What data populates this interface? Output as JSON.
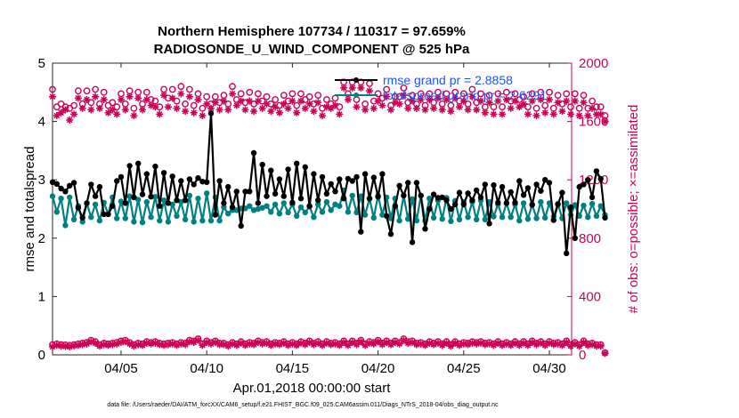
{
  "chart_data": {
    "type": "line",
    "title": [
      "Northern Hemisphere 107734 / 110317 = 97.659%",
      "RADIOSONDE_U_WIND_COMPONENT @ 525 hPa"
    ],
    "xlabel": "Apr.01,2018 00:00:00 start",
    "ylabel_left": "rmse and totalspread",
    "ylabel_right": "# of obs: o=possible; ×=assimilated",
    "xlim": [
      1,
      31.3
    ],
    "ylim_left": [
      0,
      5
    ],
    "ylim_right": [
      0,
      2000
    ],
    "x_ticks": [
      5,
      10,
      15,
      20,
      25,
      30
    ],
    "x_tick_labels": [
      "04/05",
      "04/10",
      "04/15",
      "04/20",
      "04/25",
      "04/30"
    ],
    "y_ticks_left": [
      0,
      1,
      2,
      3,
      4,
      5
    ],
    "y_ticks_right": [
      0,
      400,
      800,
      1200,
      1600,
      2000
    ],
    "x_start": 1.0,
    "x_step": 0.25,
    "series": [
      {
        "name": "rmse",
        "legend": "rmse grand pr = 2.8858",
        "axis": "left",
        "color": "#000000",
        "values": [
          2.96,
          2.93,
          2.85,
          2.8,
          2.9,
          2.95,
          2.72,
          2.92,
          2.6,
          2.92,
          2.72,
          2.88,
          2.41,
          2.9,
          2.55,
          2.98,
          3.05,
          2.6,
          3.24,
          2.7,
          3.28,
          2.75,
          3.1,
          2.71,
          3.23,
          2.55,
          3.12,
          2.6,
          3.06,
          2.65,
          2.98,
          2.65,
          3.01,
          2.92,
          3.03,
          2.97,
          2.96,
          4.14,
          2.4,
          2.98,
          2.6,
          2.88,
          2.53,
          2.8,
          2.6,
          2.8,
          2.8,
          3.46,
          2.6,
          3.26,
          2.72,
          3.16,
          2.76,
          3.01,
          2.72,
          3.18,
          2.61,
          3.28,
          2.68,
          3.22,
          2.55,
          3.1,
          2.65,
          3.05,
          2.76,
          2.93,
          2.8,
          3.01,
          2.68,
          3.02,
          2.98,
          3.05,
          2.65,
          3.1,
          2.68,
          3.04,
          2.71,
          3.1,
          2.38,
          3.1,
          2.55,
          2.9,
          2.73,
          2.95,
          2.48,
          2.95,
          2.73,
          2.8,
          2.5,
          2.75,
          2.69,
          2.7,
          2.65,
          2.5,
          2.58,
          2.78,
          2.58,
          2.77,
          2.65,
          2.82,
          2.7,
          2.92,
          2.48,
          2.91,
          2.61,
          2.88,
          2.6,
          2.79,
          2.61,
          2.98,
          2.74,
          2.86,
          2.57,
          2.92,
          2.81,
          3.0,
          2.95,
          2.8,
          2.58,
          2.78,
          2.58,
          2.53,
          2.82,
          2.88,
          2.92,
          3.0,
          3.06,
          3.15,
          3.02,
          2.35
        ],
        "overrides": {
          "6": 2.52,
          "7": 2.35,
          "13": 2.41,
          "44": 2.21,
          "72": 2.11,
          "79": 2.07,
          "84": 1.93,
          "87": 2.16,
          "102": 2.25,
          "117": 2.31,
          "120": 1.74,
          "122": 2.0,
          "126": 2.7
        },
        "low_points": {
          "6": 1.95,
          "72": 1.91,
          "120": 1.73
        }
      },
      {
        "name": "totalspread",
        "legend": "totalspread grand pr = 2.6291",
        "axis": "left",
        "color": "#008080",
        "values": [
          2.72,
          2.45,
          2.68,
          2.22,
          2.7,
          2.32,
          2.55,
          2.28,
          2.6,
          2.36,
          2.58,
          2.3,
          2.61,
          2.41,
          2.7,
          2.34,
          2.63,
          2.34,
          2.72,
          2.28,
          2.66,
          2.27,
          2.62,
          2.36,
          2.71,
          2.3,
          2.65,
          2.28,
          2.58,
          2.38,
          2.62,
          2.32,
          2.73,
          2.28,
          2.68,
          2.3,
          2.77,
          2.3,
          2.7,
          2.3,
          2.53,
          2.42,
          2.48,
          2.48,
          2.51,
          2.51,
          2.55,
          2.48,
          2.5,
          2.52,
          2.55,
          2.45,
          2.58,
          2.42,
          2.6,
          2.44,
          2.58,
          2.38,
          2.53,
          2.44,
          2.54,
          2.36,
          2.58,
          2.45,
          2.62,
          2.48,
          2.58,
          2.55,
          2.82,
          2.45,
          2.73,
          2.44,
          2.72,
          2.4,
          2.68,
          2.35,
          2.73,
          2.4,
          2.7,
          2.34,
          2.68,
          2.3,
          2.73,
          2.33,
          2.67,
          2.3,
          2.73,
          2.3,
          2.68,
          2.35,
          2.65,
          2.33,
          2.69,
          2.29,
          2.64,
          2.32,
          2.62,
          2.36,
          2.62,
          2.32,
          2.65,
          2.32,
          2.62,
          2.37,
          2.58,
          2.36,
          2.6,
          2.36,
          2.58,
          2.3,
          2.6,
          2.33,
          2.58,
          2.34,
          2.62,
          2.35,
          2.6,
          2.37,
          2.59,
          2.34,
          2.6,
          2.4,
          2.57,
          2.38,
          2.56,
          2.36,
          2.59,
          2.38,
          2.55,
          2.4
        ]
      },
      {
        "name": "possible",
        "axis": "right",
        "color": "#cc0055",
        "marker": "o",
        "values": [
          1820,
          1700,
          1720,
          1700,
          1690,
          1710,
          1810,
          1720,
          1810,
          1730,
          1820,
          1720,
          1800,
          1710,
          1730,
          1700,
          1790,
          1720,
          1810,
          1690,
          1800,
          1720,
          1800,
          1750,
          1740,
          1700,
          1820,
          1760,
          1820,
          1740,
          1840,
          1720,
          1820,
          1710,
          1790,
          1690,
          1770,
          1720,
          1770,
          1730,
          1780,
          1720,
          1840,
          1750,
          1790,
          1730,
          1800,
          1720,
          1790,
          1740,
          1770,
          1720,
          1750,
          1710,
          1780,
          1740,
          1790,
          1710,
          1790,
          1750,
          1770,
          1720,
          1780,
          1690,
          1750,
          1720,
          1760,
          1700,
          1870,
          1790,
          1870,
          1750,
          1870,
          1720,
          1860,
          1740,
          1790,
          1760,
          1820,
          1710,
          1770,
          1770,
          1830,
          1730,
          1780,
          1720,
          1790,
          1710,
          1790,
          1730,
          1800,
          1720,
          1790,
          1710,
          1800,
          1740,
          1790,
          1720,
          1820,
          1730,
          1790,
          1700,
          1780,
          1700,
          1790,
          1700,
          1800,
          1740,
          1790,
          1750,
          1770,
          1700,
          1790,
          1690,
          1800,
          1710,
          1800,
          1690,
          1780,
          1720,
          1790,
          1700,
          1790,
          1690,
          1780,
          1690,
          1740,
          1700,
          1700,
          1640
        ],
        "right_edge": 1840
      },
      {
        "name": "assimilated",
        "axis": "right",
        "color": "#cc0055",
        "marker": "*",
        "values": [
          1770,
          1640,
          1660,
          1680,
          1610,
          1650,
          1760,
          1690,
          1750,
          1680,
          1770,
          1690,
          1750,
          1660,
          1680,
          1650,
          1750,
          1680,
          1770,
          1640,
          1760,
          1680,
          1750,
          1710,
          1700,
          1650,
          1780,
          1700,
          1760,
          1690,
          1790,
          1670,
          1770,
          1660,
          1750,
          1640,
          1720,
          1690,
          1730,
          1680,
          1740,
          1680,
          1790,
          1710,
          1740,
          1680,
          1740,
          1670,
          1740,
          1690,
          1720,
          1670,
          1700,
          1660,
          1720,
          1690,
          1740,
          1660,
          1740,
          1690,
          1720,
          1670,
          1730,
          1640,
          1700,
          1690,
          1710,
          1650,
          1830,
          1750,
          1830,
          1700,
          1830,
          1680,
          1810,
          1690,
          1740,
          1710,
          1770,
          1680,
          1730,
          1720,
          1780,
          1690,
          1740,
          1690,
          1750,
          1680,
          1750,
          1690,
          1760,
          1680,
          1750,
          1670,
          1760,
          1700,
          1740,
          1680,
          1770,
          1680,
          1740,
          1660,
          1730,
          1650,
          1740,
          1650,
          1750,
          1690,
          1740,
          1700,
          1720,
          1650,
          1740,
          1640,
          1750,
          1660,
          1750,
          1650,
          1730,
          1670,
          1740,
          1650,
          1740,
          1640,
          1730,
          1640,
          1690,
          1650,
          1650,
          1600
        ]
      },
      {
        "name": "possible_low",
        "axis": "right",
        "color": "#cc0055",
        "marker": "o",
        "values": [
          70,
          75,
          70,
          68,
          65,
          70,
          75,
          80,
          85,
          100,
          90,
          70,
          80,
          75,
          80,
          85,
          95,
          100,
          85,
          70,
          80,
          75,
          90,
          85,
          90,
          80,
          75,
          80,
          85,
          75,
          85,
          80,
          100,
          95,
          110,
          75,
          95,
          85,
          95,
          80,
          80,
          70,
          85,
          75,
          90,
          75,
          85,
          80,
          95,
          85,
          90,
          75,
          85,
          80,
          90,
          75,
          85,
          75,
          90,
          80,
          95,
          80,
          90,
          75,
          90,
          80,
          85,
          75,
          95,
          75,
          95,
          80,
          100,
          75,
          90,
          85,
          100,
          80,
          95,
          80,
          95,
          85,
          110,
          90,
          95,
          80,
          85,
          75,
          90,
          80,
          90,
          75,
          90,
          70,
          90,
          75,
          85,
          80,
          90,
          85,
          90,
          80,
          85,
          75,
          90,
          75,
          85,
          75,
          90,
          75,
          90,
          75,
          95,
          80,
          90,
          75,
          90,
          80,
          85,
          75,
          95,
          70,
          85,
          70,
          95,
          75,
          80,
          70,
          70,
          15
        ]
      },
      {
        "name": "assimilated_low",
        "axis": "right",
        "color": "#cc0055",
        "marker": "*",
        "values": [
          55,
          65,
          60,
          58,
          55,
          62,
          65,
          70,
          75,
          90,
          80,
          60,
          70,
          65,
          70,
          75,
          85,
          90,
          75,
          60,
          70,
          65,
          80,
          75,
          80,
          70,
          65,
          70,
          75,
          65,
          75,
          70,
          90,
          85,
          100,
          65,
          85,
          75,
          85,
          70,
          70,
          60,
          75,
          65,
          80,
          65,
          75,
          70,
          85,
          75,
          80,
          65,
          75,
          70,
          80,
          65,
          75,
          65,
          80,
          70,
          85,
          70,
          80,
          65,
          80,
          70,
          75,
          65,
          85,
          65,
          85,
          70,
          90,
          65,
          80,
          75,
          90,
          70,
          85,
          70,
          85,
          75,
          100,
          80,
          85,
          70,
          75,
          65,
          80,
          70,
          80,
          65,
          80,
          60,
          80,
          65,
          75,
          70,
          80,
          75,
          80,
          70,
          75,
          65,
          80,
          65,
          75,
          65,
          80,
          65,
          80,
          65,
          85,
          70,
          80,
          65,
          80,
          70,
          75,
          65,
          85,
          60,
          75,
          60,
          85,
          65,
          70,
          60,
          60,
          10
        ]
      }
    ]
  },
  "footnote": "data file: /Users/raeder/DAI/ATM_forcXX/CAM6_setup/f.e21.FHIST_BGC.f09_025.CAM6assim.011/Diags_NTrS_2018-04/obs_diag_output.nc"
}
